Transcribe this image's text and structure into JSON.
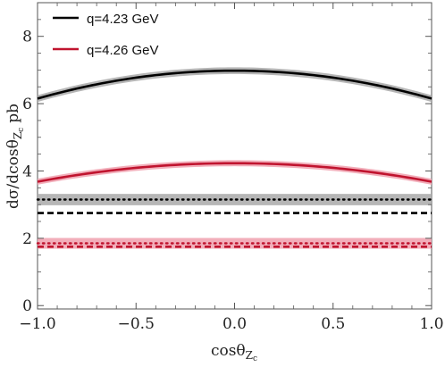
{
  "chart_data": {
    "type": "line",
    "xlabel": "cosθ",
    "xlabel_sub": "Z",
    "xlabel_subsub": "c",
    "ylabel": "dσ/dcosθ",
    "ylabel_sub": "Z",
    "ylabel_subsub": "c",
    "ylabel_unit": "pb",
    "xlim": [
      -1.0,
      1.0
    ],
    "ylim": [
      -0.1,
      9.0
    ],
    "xticks": [
      -1.0,
      -0.5,
      0.0,
      0.5,
      1.0
    ],
    "xtick_labels": [
      "−1.0",
      "−0.5",
      "0.0",
      "0.5",
      "1.0"
    ],
    "yticks": [
      0,
      2,
      4,
      6,
      8
    ],
    "ytick_labels": [
      "0",
      "2",
      "4",
      "6",
      "8"
    ],
    "grid": false,
    "legend_position": "top-left",
    "legend": [
      {
        "label": "q=4.23 GeV",
        "color": "#000000"
      },
      {
        "label": "q=4.26 GeV",
        "color": "#c0142f"
      }
    ],
    "series": [
      {
        "style": "solid",
        "color": "#000000",
        "band_color": "#a9a9a9",
        "x": [
          -1.0,
          -0.5,
          0.0,
          0.5,
          1.0
        ],
        "y": [
          6.15,
          6.7,
          6.98,
          6.7,
          6.15
        ],
        "band_half_width": 0.1
      },
      {
        "style": "dotted",
        "color": "#000000",
        "band_color": "#a9a9a9",
        "x": [
          -1.0,
          1.0
        ],
        "y": [
          3.15,
          3.15
        ],
        "band_half_width": 0.17
      },
      {
        "style": "dashed",
        "color": "#000000",
        "x": [
          -1.0,
          1.0
        ],
        "y": [
          2.75,
          2.75
        ],
        "band_half_width": 0
      },
      {
        "style": "solid",
        "color": "#c0142f",
        "band_color": "#f0a0ae",
        "x": [
          -1.0,
          -0.5,
          0.0,
          0.5,
          1.0
        ],
        "y": [
          3.68,
          4.05,
          4.23,
          4.05,
          3.68
        ],
        "band_half_width": 0.09
      },
      {
        "style": "dotted",
        "color": "#c0142f",
        "band_color": "#f0a0ae",
        "x": [
          -1.0,
          1.0
        ],
        "y": [
          1.85,
          1.85
        ],
        "band_half_width": 0.16
      },
      {
        "style": "dashed",
        "color": "#c0142f",
        "x": [
          -1.0,
          1.0
        ],
        "y": [
          1.75,
          1.75
        ],
        "band_half_width": 0
      }
    ]
  }
}
